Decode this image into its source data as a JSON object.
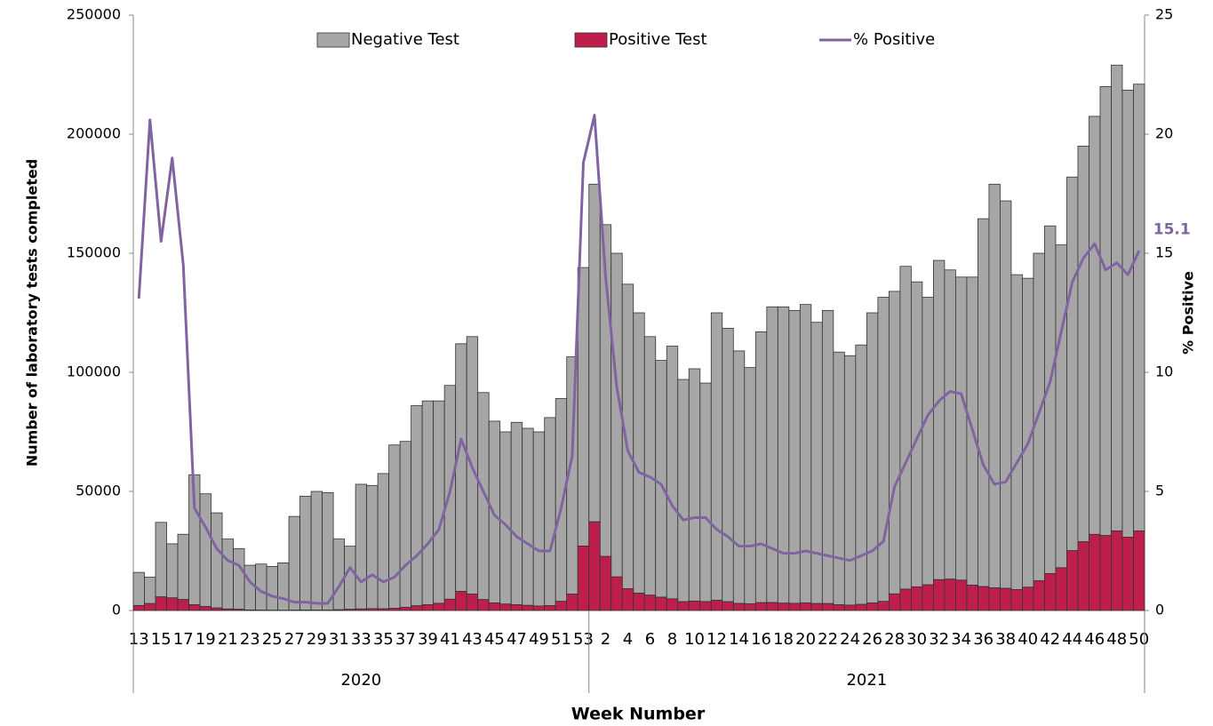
{
  "chart_data": {
    "type": "bar-line",
    "y_label": "Number of laboratory tests completed",
    "y2_label": "% Positive",
    "x_label": "Week Number",
    "categories": [
      "13",
      null,
      "15",
      null,
      "17",
      null,
      "19",
      null,
      "21",
      null,
      "23",
      null,
      "25",
      null,
      "27",
      null,
      "29",
      null,
      "31",
      null,
      "33",
      null,
      "35",
      null,
      "37",
      null,
      "39",
      null,
      "41",
      null,
      "43",
      null,
      "45",
      null,
      "47",
      null,
      "49",
      null,
      "51",
      null,
      "53",
      null,
      "2",
      null,
      "4",
      null,
      "6",
      null,
      "8",
      null,
      "10",
      null,
      "12",
      null,
      "14",
      null,
      "16",
      null,
      "18",
      null,
      "20",
      null,
      "22",
      null,
      "24",
      null,
      "26",
      null,
      "28",
      null,
      "30",
      null,
      "32",
      null,
      "34",
      null,
      "36",
      null,
      "38",
      null,
      "40",
      null,
      "42",
      null,
      "44",
      null,
      "46",
      null,
      "48",
      null,
      "50"
    ],
    "x_groups": [
      "2020",
      "2021"
    ],
    "series": [
      {
        "name": "Negative Test",
        "color": "#a6a6a6",
        "stack": "tests",
        "values": [
          13900,
          11100,
          31300,
          22700,
          27400,
          54550,
          47300,
          39950,
          29370,
          25500,
          18770,
          19340,
          18390,
          19900,
          39360,
          47830,
          49850,
          49350,
          29700,
          26510,
          52360,
          51710,
          56810,
          68530,
          69650,
          84020,
          85540,
          85010,
          89770,
          103940,
          108100,
          86920,
          76320,
          72300,
          76550,
          74360,
          73120,
          78970,
          85170,
          99580,
          116930,
          141770,
          139320,
          135900,
          127820,
          117750,
          108560,
          99430,
          106120,
          93310,
          97540,
          91780,
          120750,
          114830,
          106060,
          99250,
          113720,
          124180,
          124440,
          122980,
          125290,
          118100,
          123100,
          106110,
          104750,
          108940,
          121870,
          127690,
          127030,
          135540,
          128060,
          120720,
          134060,
          129840,
          127260,
          129360,
          154470,
          169510,
          162710,
          132260,
          129730,
          137550,
          146000,
          135540,
          156880,
          166140,
          175540,
          188540,
          195570,
          187690,
          187630
        ]
      },
      {
        "name": "Positive Test",
        "color": "#be1e4b",
        "stack": "tests",
        "values": [
          2100,
          2900,
          5700,
          5300,
          4600,
          2450,
          1700,
          1050,
          630,
          500,
          230,
          160,
          110,
          100,
          140,
          170,
          150,
          150,
          300,
          490,
          640,
          790,
          690,
          970,
          1350,
          1980,
          2460,
          2990,
          4730,
          8060,
          6900,
          4580,
          3180,
          2700,
          2450,
          2140,
          1880,
          2030,
          3830,
          6920,
          27070,
          37230,
          22680,
          14100,
          9180,
          7250,
          6440,
          5570,
          4880,
          3690,
          3960,
          3720,
          4250,
          3670,
          2940,
          2750,
          3280,
          3320,
          3060,
          3020,
          3210,
          2900,
          2900,
          2390,
          2250,
          2560,
          3130,
          3810,
          6970,
          8960,
          9940,
          10780,
          12940,
          13160,
          12740,
          10640,
          10030,
          9490,
          9290,
          8740,
          9770,
          12450,
          15500,
          17960,
          25120,
          28860,
          31960,
          31460,
          33430,
          30810,
          33370
        ]
      },
      {
        "name": "% Positive",
        "color": "#8064a2",
        "type": "line",
        "axis": "y2",
        "values": [
          13.1,
          20.6,
          15.5,
          19,
          14.5,
          4.3,
          3.5,
          2.6,
          2.1,
          1.9,
          1.2,
          0.8,
          0.6,
          0.5,
          0.35,
          0.35,
          0.3,
          0.3,
          1,
          1.8,
          1.2,
          1.5,
          1.2,
          1.4,
          1.9,
          2.3,
          2.8,
          3.4,
          5,
          7.2,
          6,
          5,
          4,
          3.6,
          3.1,
          2.8,
          2.5,
          2.5,
          4.3,
          6.5,
          18.8,
          20.8,
          14,
          9.4,
          6.7,
          5.8,
          5.6,
          5.3,
          4.4,
          3.8,
          3.9,
          3.9,
          3.4,
          3.1,
          2.7,
          2.7,
          2.8,
          2.6,
          2.4,
          2.4,
          2.5,
          2.4,
          2.3,
          2.2,
          2.1,
          2.3,
          2.5,
          2.9,
          5.2,
          6.2,
          7.2,
          8.2,
          8.8,
          9.2,
          9.1,
          7.6,
          6.1,
          5.3,
          5.4,
          6.2,
          7,
          8.3,
          9.6,
          11.7,
          13.8,
          14.8,
          15.4,
          14.3,
          14.6,
          14.1,
          15.1
        ]
      }
    ],
    "last_value_label": "15.1",
    "ylim": [
      0,
      250000
    ],
    "yticks": [
      0,
      50000,
      100000,
      150000,
      200000,
      250000
    ],
    "y2lim": [
      0,
      25
    ],
    "y2ticks": [
      0,
      5,
      10,
      15,
      20,
      25
    ],
    "legend": "top",
    "grid": false
  }
}
